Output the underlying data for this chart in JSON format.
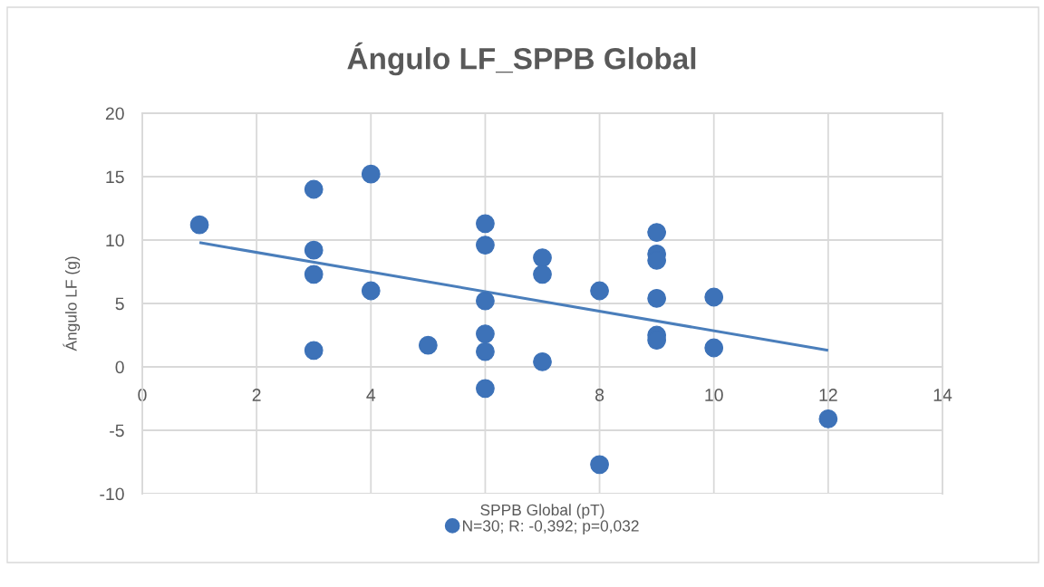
{
  "chart_data": {
    "type": "scatter",
    "title": "Ángulo LF_SPPB Global",
    "xlabel": "SPPB Global (pT)",
    "ylabel": "Ángulo LF (g)",
    "xlim": [
      0,
      14
    ],
    "xticks": [
      0,
      2,
      4,
      {
        "value": 6,
        "label": null
      },
      8,
      10,
      12,
      14
    ],
    "ylim": [
      -10,
      20
    ],
    "yticks": [
      -10,
      -5,
      0,
      5,
      10,
      15,
      20
    ],
    "grid": true,
    "legend": "bottom",
    "series": [
      {
        "name": "N=30; R: -0,392; p=0,032",
        "color": "#3d72b8",
        "marker": "circle",
        "x": [
          1,
          3,
          3,
          3,
          3,
          4,
          4,
          5,
          6,
          6,
          6,
          6,
          6,
          6,
          7,
          7,
          7,
          8,
          8,
          9,
          9,
          9,
          9,
          9,
          9,
          10,
          10,
          12
        ],
        "values": [
          11.2,
          14.0,
          9.2,
          7.3,
          1.3,
          15.2,
          6.0,
          1.7,
          11.3,
          9.6,
          5.2,
          2.6,
          1.2,
          -1.7,
          8.6,
          7.3,
          0.4,
          6.0,
          -7.7,
          10.6,
          8.9,
          8.4,
          5.4,
          2.5,
          2.1,
          5.5,
          1.5,
          -4.1
        ]
      },
      {
        "type": "line",
        "color": "#4a7ebb",
        "x": [
          1,
          12
        ],
        "values": [
          9.8,
          1.3
        ]
      }
    ]
  }
}
